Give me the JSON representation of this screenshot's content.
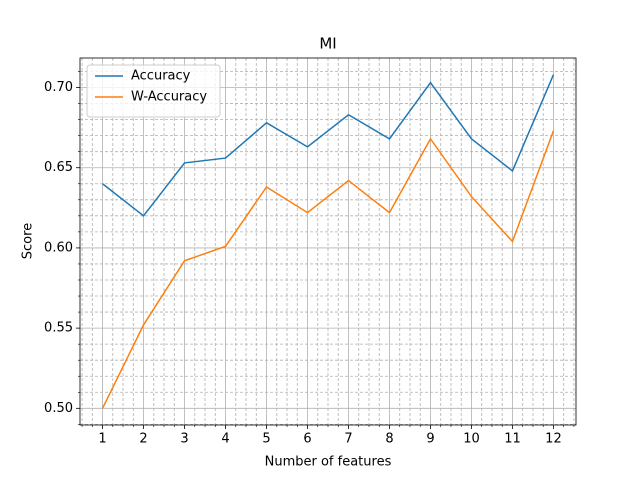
{
  "chart_data": {
    "type": "line",
    "title": "MI",
    "xlabel": "Number of features",
    "ylabel": "Score",
    "x": [
      1,
      2,
      3,
      4,
      5,
      6,
      7,
      8,
      9,
      10,
      11,
      12
    ],
    "series": [
      {
        "name": "Accuracy",
        "color": "#1f77b4",
        "values": [
          0.64,
          0.62,
          0.653,
          0.656,
          0.678,
          0.663,
          0.683,
          0.668,
          0.703,
          0.668,
          0.648,
          0.708
        ]
      },
      {
        "name": "W-Accuracy",
        "color": "#ff7f0e",
        "values": [
          0.5,
          0.552,
          0.592,
          0.601,
          0.638,
          0.622,
          0.642,
          0.622,
          0.668,
          0.632,
          0.604,
          0.673
        ]
      }
    ],
    "xlim": [
      0.45,
      12.55
    ],
    "ylim": [
      0.4896,
      0.7184
    ],
    "xticks": [
      1,
      2,
      3,
      4,
      5,
      6,
      7,
      8,
      9,
      10,
      11,
      12
    ],
    "yticks": [
      {
        "value": 0.5,
        "label": "0.50"
      },
      {
        "value": 0.55,
        "label": "0.55"
      },
      {
        "value": 0.6,
        "label": "0.60"
      },
      {
        "value": 0.65,
        "label": "0.65"
      },
      {
        "value": 0.7,
        "label": "0.70"
      }
    ],
    "xminorticks": [
      0.5,
      0.75,
      1.25,
      1.5,
      1.75,
      2.25,
      2.5,
      2.75,
      3.25,
      3.5,
      3.75,
      4.25,
      4.5,
      4.75,
      5.25,
      5.5,
      5.75,
      6.25,
      6.5,
      6.75,
      7.25,
      7.5,
      7.75,
      8.25,
      8.5,
      8.75,
      9.25,
      9.5,
      9.75,
      10.25,
      10.5,
      10.75,
      11.25,
      11.5,
      11.75,
      12.25,
      12.5
    ],
    "yminorticks": [
      0.49,
      0.51,
      0.52,
      0.53,
      0.54,
      0.56,
      0.57,
      0.58,
      0.59,
      0.61,
      0.62,
      0.63,
      0.64,
      0.66,
      0.67,
      0.68,
      0.69,
      0.71
    ],
    "grid": true,
    "minor_grid": true,
    "legend": "upper left"
  }
}
